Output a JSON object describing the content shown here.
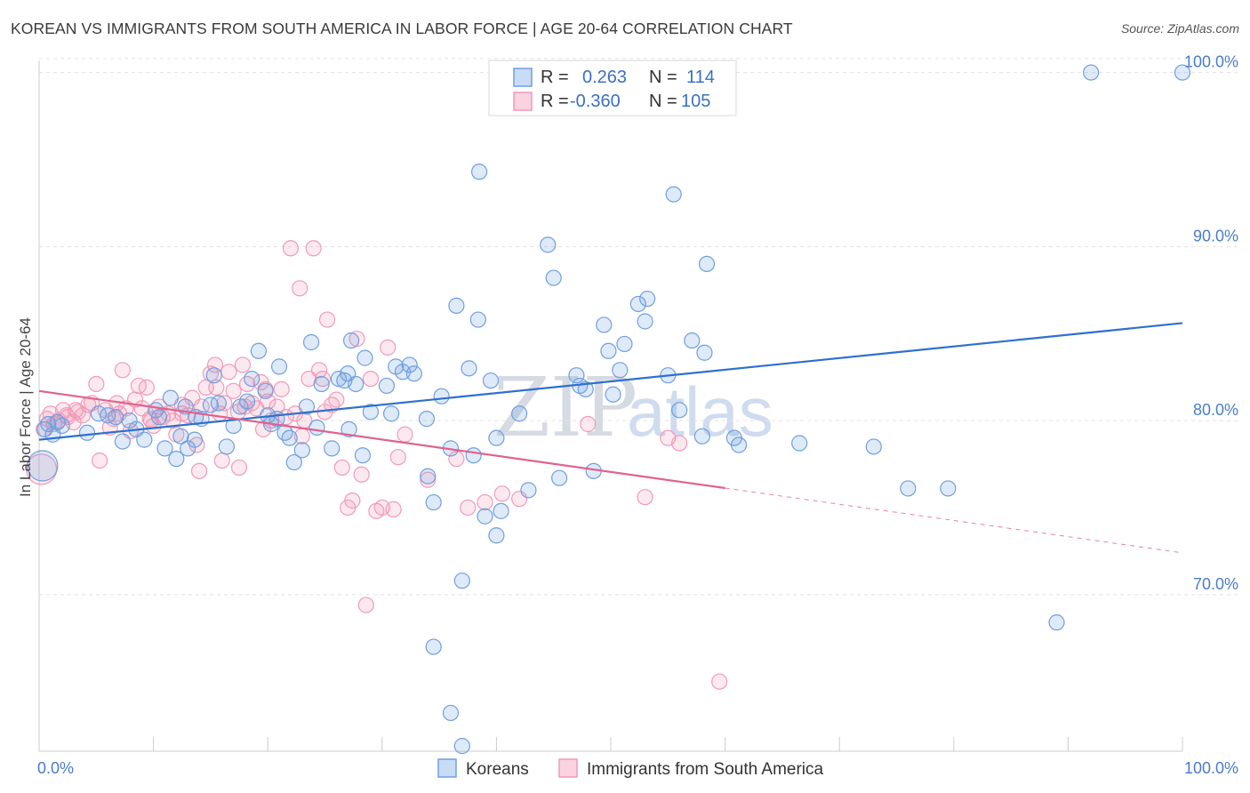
{
  "header": {
    "title": "KOREAN VS IMMIGRANTS FROM SOUTH AMERICA IN LABOR FORCE | AGE 20-64 CORRELATION CHART",
    "source": "Source: ZipAtlas.com"
  },
  "watermark": {
    "zip": "ZIP",
    "atlas": "atlas"
  },
  "legend": {
    "rows": [
      {
        "r_label": "R =",
        "r_value": "0.263",
        "n_label": "N =",
        "n_value": "114",
        "color": "#6f9fe0"
      },
      {
        "r_label": "R =",
        "r_value": "-0.360",
        "n_label": "N =",
        "n_value": "105",
        "color": "#f19ab8"
      }
    ],
    "bottom": [
      "Koreans",
      "Immigrants from South America"
    ]
  },
  "chart_data": {
    "type": "scatter",
    "ylabel": "In Labor Force | Age 20-64",
    "xlim": [
      0,
      100
    ],
    "ylim": [
      61,
      101
    ],
    "x_tick_labels": [
      "0.0%",
      "100.0%"
    ],
    "y_ticks": [
      70,
      80,
      90,
      100
    ],
    "y_tick_labels": [
      "70.0%",
      "80.0%",
      "90.0%",
      "100.0%"
    ],
    "grid": true,
    "legend_position": "top-center",
    "series": [
      {
        "name": "Koreans",
        "color": "#6f9fe0",
        "trend": {
          "x": [
            0,
            100
          ],
          "y": [
            78.9,
            85.6
          ],
          "dashed_from": null
        },
        "points": [
          [
            0.3,
            77.4,
            1
          ],
          [
            0.5,
            79.5,
            0
          ],
          [
            0.8,
            79.8,
            0
          ],
          [
            1.2,
            79.2,
            0
          ],
          [
            1.6,
            79.9,
            0
          ],
          [
            2.0,
            79.7,
            0
          ],
          [
            4.2,
            79.3,
            0
          ],
          [
            5.2,
            80.4,
            0
          ],
          [
            6.0,
            80.3,
            0
          ],
          [
            6.7,
            80.2,
            0
          ],
          [
            7.3,
            78.8,
            0
          ],
          [
            7.9,
            80.0,
            0
          ],
          [
            8.5,
            79.5,
            0
          ],
          [
            9.2,
            78.9,
            0
          ],
          [
            10.2,
            80.6,
            0
          ],
          [
            10.5,
            80.2,
            0
          ],
          [
            11.0,
            78.4,
            0
          ],
          [
            11.5,
            81.3,
            0
          ],
          [
            12.0,
            77.8,
            0
          ],
          [
            12.4,
            79.1,
            0
          ],
          [
            12.8,
            80.8,
            0
          ],
          [
            13.0,
            78.4,
            0
          ],
          [
            13.7,
            80.2,
            0
          ],
          [
            14.2,
            80.1,
            0
          ],
          [
            15.0,
            80.9,
            0
          ],
          [
            15.3,
            82.6,
            0
          ],
          [
            15.7,
            81.0,
            0
          ],
          [
            16.4,
            78.5,
            0
          ],
          [
            17.0,
            79.7,
            0
          ],
          [
            17.6,
            80.8,
            0
          ],
          [
            18.2,
            81.1,
            0
          ],
          [
            18.6,
            82.4,
            0
          ],
          [
            19.2,
            84.0,
            0
          ],
          [
            19.8,
            81.7,
            0
          ],
          [
            20.0,
            80.3,
            0
          ],
          [
            20.3,
            79.8,
            0
          ],
          [
            20.8,
            80.1,
            0
          ],
          [
            21.0,
            83.1,
            0
          ],
          [
            21.5,
            79.3,
            0
          ],
          [
            21.9,
            79.0,
            0
          ],
          [
            22.3,
            77.6,
            0
          ],
          [
            23.0,
            78.3,
            0
          ],
          [
            23.8,
            84.5,
            0
          ],
          [
            23.4,
            80.8,
            0
          ],
          [
            24.3,
            79.6,
            0
          ],
          [
            24.7,
            82.1,
            0
          ],
          [
            25.6,
            78.4,
            0
          ],
          [
            26.2,
            82.4,
            0
          ],
          [
            26.7,
            82.3,
            0
          ],
          [
            27.0,
            82.7,
            0
          ],
          [
            27.3,
            84.6,
            0
          ],
          [
            27.7,
            82.1,
            0
          ],
          [
            28.3,
            78.0,
            0
          ],
          [
            28.5,
            83.6,
            0
          ],
          [
            29.0,
            80.5,
            0
          ],
          [
            30.4,
            82.0,
            0
          ],
          [
            30.8,
            80.4,
            0
          ],
          [
            31.2,
            83.1,
            0
          ],
          [
            31.8,
            82.8,
            0
          ],
          [
            32.4,
            83.2,
            0
          ],
          [
            32.8,
            82.7,
            0
          ],
          [
            34.0,
            76.8,
            0
          ],
          [
            34.5,
            75.3,
            0
          ],
          [
            35.2,
            81.4,
            0
          ],
          [
            36.0,
            78.4,
            0
          ],
          [
            36.5,
            86.6,
            0
          ],
          [
            37.6,
            83.0,
            0
          ],
          [
            38.0,
            78.0,
            0
          ],
          [
            38.4,
            85.8,
            0
          ],
          [
            39.0,
            74.5,
            0
          ],
          [
            39.5,
            82.3,
            0
          ],
          [
            40.0,
            79.0,
            0
          ],
          [
            40.4,
            74.8,
            0
          ],
          [
            42.0,
            80.4,
            0
          ],
          [
            42.8,
            76.0,
            0
          ],
          [
            44.5,
            90.1,
            0
          ],
          [
            45.0,
            88.2,
            0
          ],
          [
            45.5,
            76.7,
            0
          ],
          [
            47.0,
            82.6,
            0
          ],
          [
            47.3,
            82.0,
            0
          ],
          [
            47.8,
            81.8,
            0
          ],
          [
            48.5,
            77.1,
            0
          ],
          [
            49.4,
            85.5,
            0
          ],
          [
            49.8,
            84.0,
            0
          ],
          [
            50.2,
            81.5,
            0
          ],
          [
            50.8,
            82.9,
            0
          ],
          [
            51.2,
            84.4,
            0
          ],
          [
            52.4,
            86.7,
            0
          ],
          [
            53.2,
            87.0,
            0
          ],
          [
            53.0,
            85.7,
            0
          ],
          [
            55.0,
            82.6,
            0
          ],
          [
            56.0,
            80.6,
            0
          ],
          [
            57.1,
            84.6,
            0
          ],
          [
            58.2,
            83.9,
            0
          ],
          [
            60.8,
            79.0,
            0
          ],
          [
            61.2,
            78.6,
            0
          ],
          [
            66.5,
            78.7,
            0
          ],
          [
            73.0,
            78.5,
            0
          ],
          [
            76.0,
            76.1,
            0
          ],
          [
            79.5,
            76.1,
            0
          ],
          [
            89.0,
            68.4,
            0
          ],
          [
            92.0,
            100.0,
            0
          ],
          [
            100.0,
            100.0,
            0
          ],
          [
            58.0,
            79.1,
            0
          ],
          [
            33.9,
            80.1,
            0
          ],
          [
            27.1,
            79.5,
            0
          ],
          [
            34.5,
            67.0,
            0
          ],
          [
            38.5,
            94.3,
            0
          ],
          [
            37.0,
            70.8,
            0
          ],
          [
            40.0,
            73.4,
            0
          ],
          [
            36.0,
            63.2,
            0
          ],
          [
            37.0,
            61.3,
            0
          ],
          [
            55.5,
            93.0,
            0
          ],
          [
            58.4,
            89.0,
            0
          ],
          [
            13.6,
            78.9,
            0
          ]
        ]
      },
      {
        "name": "Immigrants from South America",
        "color": "#f19ab8",
        "trend": {
          "x": [
            0,
            100
          ],
          "y": [
            81.7,
            72.4
          ],
          "dashed_from": 60
        },
        "points": [
          [
            0.2,
            77.2,
            1
          ],
          [
            0.4,
            79.5,
            0
          ],
          [
            0.7,
            80.1,
            0
          ],
          [
            1.0,
            80.4,
            0
          ],
          [
            1.3,
            79.8,
            0
          ],
          [
            1.7,
            80.0,
            0
          ],
          [
            2.1,
            80.6,
            0
          ],
          [
            2.5,
            80.2,
            0
          ],
          [
            3.0,
            79.9,
            0
          ],
          [
            3.4,
            80.5,
            0
          ],
          [
            3.8,
            80.3,
            0
          ],
          [
            4.3,
            80.9,
            0
          ],
          [
            4.6,
            81.0,
            0
          ],
          [
            5.0,
            82.1,
            0
          ],
          [
            5.3,
            77.7,
            0
          ],
          [
            5.8,
            80.6,
            0
          ],
          [
            6.2,
            79.6,
            0
          ],
          [
            6.5,
            80.1,
            0
          ],
          [
            7.0,
            80.4,
            0
          ],
          [
            7.3,
            82.9,
            0
          ],
          [
            7.6,
            80.7,
            0
          ],
          [
            8.0,
            79.4,
            0
          ],
          [
            8.4,
            81.2,
            0
          ],
          [
            8.7,
            82.0,
            0
          ],
          [
            9.0,
            80.7,
            0
          ],
          [
            9.4,
            81.9,
            0
          ],
          [
            9.7,
            80.1,
            0
          ],
          [
            10.0,
            79.7,
            0
          ],
          [
            10.5,
            80.8,
            0
          ],
          [
            10.8,
            80.2,
            0
          ],
          [
            11.3,
            80.4,
            0
          ],
          [
            11.7,
            80.0,
            0
          ],
          [
            12.0,
            79.2,
            0
          ],
          [
            12.5,
            80.9,
            0
          ],
          [
            13.0,
            80.3,
            0
          ],
          [
            13.4,
            81.3,
            0
          ],
          [
            13.8,
            78.6,
            0
          ],
          [
            14.2,
            80.8,
            0
          ],
          [
            14.6,
            81.9,
            0
          ],
          [
            15.0,
            82.7,
            0
          ],
          [
            15.4,
            83.2,
            0
          ],
          [
            15.8,
            80.4,
            0
          ],
          [
            16.2,
            81.0,
            0
          ],
          [
            16.6,
            82.8,
            0
          ],
          [
            17.0,
            81.7,
            0
          ],
          [
            17.4,
            80.5,
            0
          ],
          [
            17.8,
            83.2,
            0
          ],
          [
            18.2,
            82.1,
            0
          ],
          [
            18.6,
            81.0,
            0
          ],
          [
            19.0,
            80.7,
            0
          ],
          [
            19.4,
            82.2,
            0
          ],
          [
            19.8,
            81.8,
            0
          ],
          [
            20.3,
            80.0,
            0
          ],
          [
            20.8,
            80.8,
            0
          ],
          [
            21.2,
            81.8,
            0
          ],
          [
            21.6,
            80.2,
            0
          ],
          [
            22.0,
            89.9,
            0
          ],
          [
            22.4,
            80.4,
            0
          ],
          [
            22.8,
            87.6,
            0
          ],
          [
            23.2,
            80.0,
            0
          ],
          [
            23.6,
            82.4,
            0
          ],
          [
            24.0,
            89.9,
            0
          ],
          [
            24.5,
            82.9,
            0
          ],
          [
            24.8,
            82.4,
            0
          ],
          [
            25.2,
            85.8,
            0
          ],
          [
            25.6,
            80.9,
            0
          ],
          [
            26.0,
            81.2,
            0
          ],
          [
            26.5,
            77.3,
            0
          ],
          [
            27.0,
            75.0,
            0
          ],
          [
            27.4,
            75.4,
            0
          ],
          [
            27.8,
            84.7,
            0
          ],
          [
            28.2,
            76.9,
            0
          ],
          [
            28.6,
            69.4,
            0
          ],
          [
            29.0,
            82.4,
            0
          ],
          [
            29.5,
            74.8,
            0
          ],
          [
            30.0,
            75.0,
            0
          ],
          [
            30.5,
            84.2,
            0
          ],
          [
            31.0,
            74.9,
            0
          ],
          [
            31.4,
            77.9,
            0
          ],
          [
            32.0,
            79.2,
            0
          ],
          [
            34.0,
            76.6,
            0
          ],
          [
            36.5,
            77.8,
            0
          ],
          [
            37.5,
            75.0,
            0
          ],
          [
            39.0,
            75.3,
            0
          ],
          [
            40.5,
            75.8,
            0
          ],
          [
            42.0,
            75.5,
            0
          ],
          [
            48.0,
            79.8,
            0
          ],
          [
            53.0,
            75.6,
            0
          ],
          [
            55.0,
            79.0,
            0
          ],
          [
            56.0,
            78.7,
            0
          ],
          [
            59.5,
            65.0,
            0
          ],
          [
            14.0,
            77.1,
            0
          ],
          [
            16.0,
            77.7,
            0
          ],
          [
            17.5,
            77.3,
            0
          ],
          [
            23.0,
            79.1,
            0
          ],
          [
            25.0,
            80.5,
            0
          ],
          [
            12.5,
            80.4,
            0
          ],
          [
            15.5,
            81.9,
            0
          ],
          [
            18.0,
            80.8,
            0
          ],
          [
            20.0,
            81.1,
            0
          ],
          [
            6.8,
            81.0,
            0
          ],
          [
            3.2,
            80.6,
            0
          ],
          [
            9.8,
            80.0,
            0
          ],
          [
            2.4,
            80.3,
            0
          ],
          [
            19.6,
            79.5,
            0
          ]
        ]
      }
    ]
  }
}
